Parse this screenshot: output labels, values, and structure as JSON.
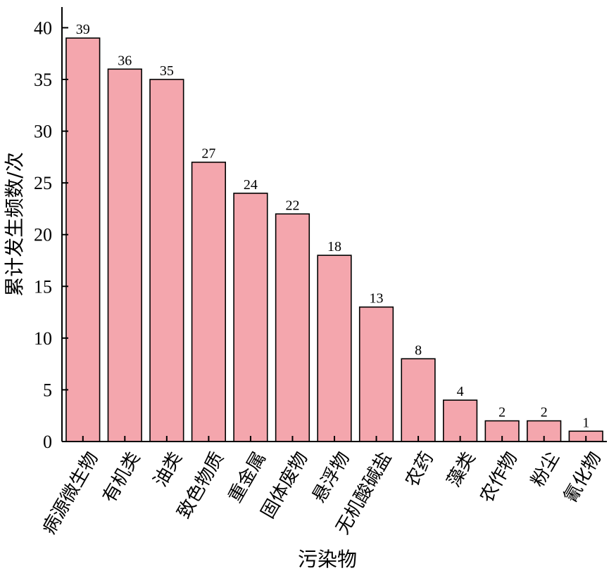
{
  "chart_data": {
    "type": "bar",
    "xlabel": "污染物",
    "ylabel": "累计发生频数/次",
    "categories": [
      "病源微生物",
      "有机类",
      "油类",
      "致色物质",
      "重金属",
      "固体废物",
      "悬浮物",
      "无机酸碱盐",
      "农药",
      "藻类",
      "农作物",
      "粉尘",
      "氰化物"
    ],
    "values": [
      39,
      36,
      35,
      27,
      24,
      22,
      18,
      13,
      8,
      4,
      2,
      2,
      1
    ],
    "ylim": [
      0,
      42
    ],
    "yticks": [
      0,
      5,
      10,
      15,
      20,
      25,
      30,
      35,
      40
    ],
    "grid": false,
    "legend": "none",
    "bar_color": "#f4a6ad",
    "bar_edge_color": "#000000"
  }
}
